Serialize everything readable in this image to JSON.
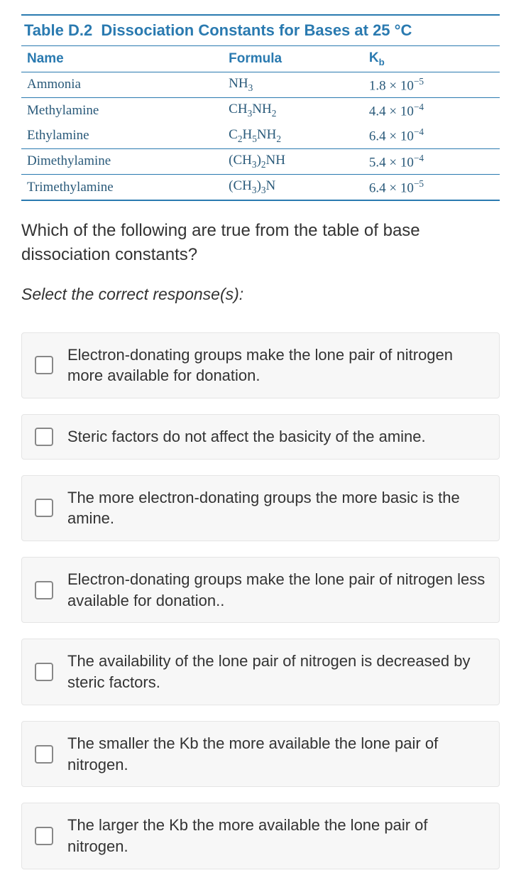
{
  "table": {
    "title_prefix": "Table D.2",
    "title_text": "Dissociation Constants for Bases at 25 °C",
    "headers": {
      "name": "Name",
      "formula": "Formula",
      "kb": "K_b"
    },
    "rows": [
      {
        "name": "Ammonia",
        "formula": "NH_3",
        "kb": "1.8 × 10^-5",
        "sep": false
      },
      {
        "name": "Methylamine",
        "formula": "CH_3NH_2",
        "kb": "4.4 × 10^-4",
        "sep": true
      },
      {
        "name": "Ethylamine",
        "formula": "C_2H_5NH_2",
        "kb": "6.4 × 10^-4",
        "sep": false
      },
      {
        "name": "Dimethylamine",
        "formula": "(CH_3)_2NH",
        "kb": "5.4 × 10^-4",
        "sep": true
      },
      {
        "name": "Trimethylamine",
        "formula": "(CH_3)_3N",
        "kb": "6.4 × 10^-5",
        "sep": true
      }
    ]
  },
  "question": {
    "prompt": "Which of the following are true from the table of base dissociation constants?",
    "instruction": "Select the correct response(s):"
  },
  "options": [
    {
      "text": "Electron-donating groups make the lone pair of nitrogen more available for donation."
    },
    {
      "text": "Steric factors do not affect the basicity of the amine."
    },
    {
      "text": "The more electron-donating groups the more basic is the amine."
    },
    {
      "text": "Electron-donating groups make the lone pair of nitrogen less available for donation.."
    },
    {
      "text": "The availability of the lone pair of nitrogen is decreased by steric factors."
    },
    {
      "text": "The smaller the Kb the more available the lone pair of nitrogen."
    },
    {
      "text": "The larger the Kb the more available the lone pair of nitrogen."
    }
  ],
  "colors": {
    "accent": "#2a7ab0",
    "table_text": "#2a5a7a",
    "body_text": "#333333",
    "option_bg": "#f7f7f7",
    "option_border": "#e5e5e5"
  }
}
